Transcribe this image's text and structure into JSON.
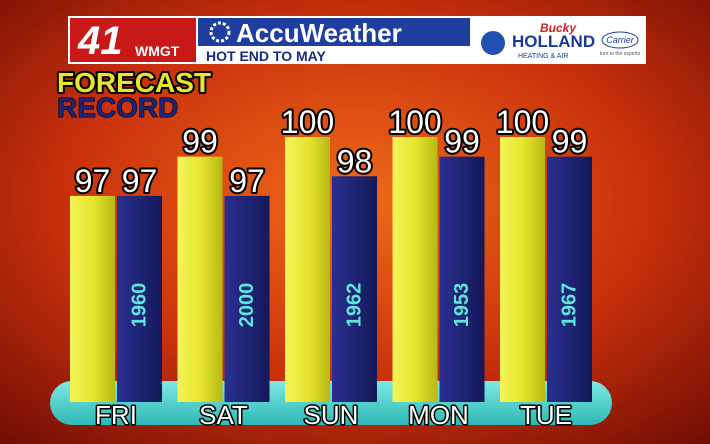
{
  "header": {
    "channel": "41",
    "station": "WMGT",
    "brand": "AccuWeather",
    "headline": "HOT END TO MAY",
    "sponsor": {
      "script": "Bucky",
      "name": "HOLLAND",
      "tagline": "HEATING & AIR",
      "partner": "Carrier",
      "slogan": "turn to the experts"
    }
  },
  "chart_data": {
    "type": "bar",
    "categories": [
      "FRI",
      "SAT",
      "SUN",
      "MON",
      "TUE"
    ],
    "series": [
      {
        "name": "FORECAST",
        "color": "#e6e62e",
        "values": [
          97,
          99,
          100,
          100,
          100
        ]
      },
      {
        "name": "RECORD",
        "color": "#1d2272",
        "values": [
          97,
          97,
          98,
          99,
          99
        ],
        "years": [
          1960,
          2000,
          1962,
          1953,
          1967
        ]
      }
    ]
  }
}
